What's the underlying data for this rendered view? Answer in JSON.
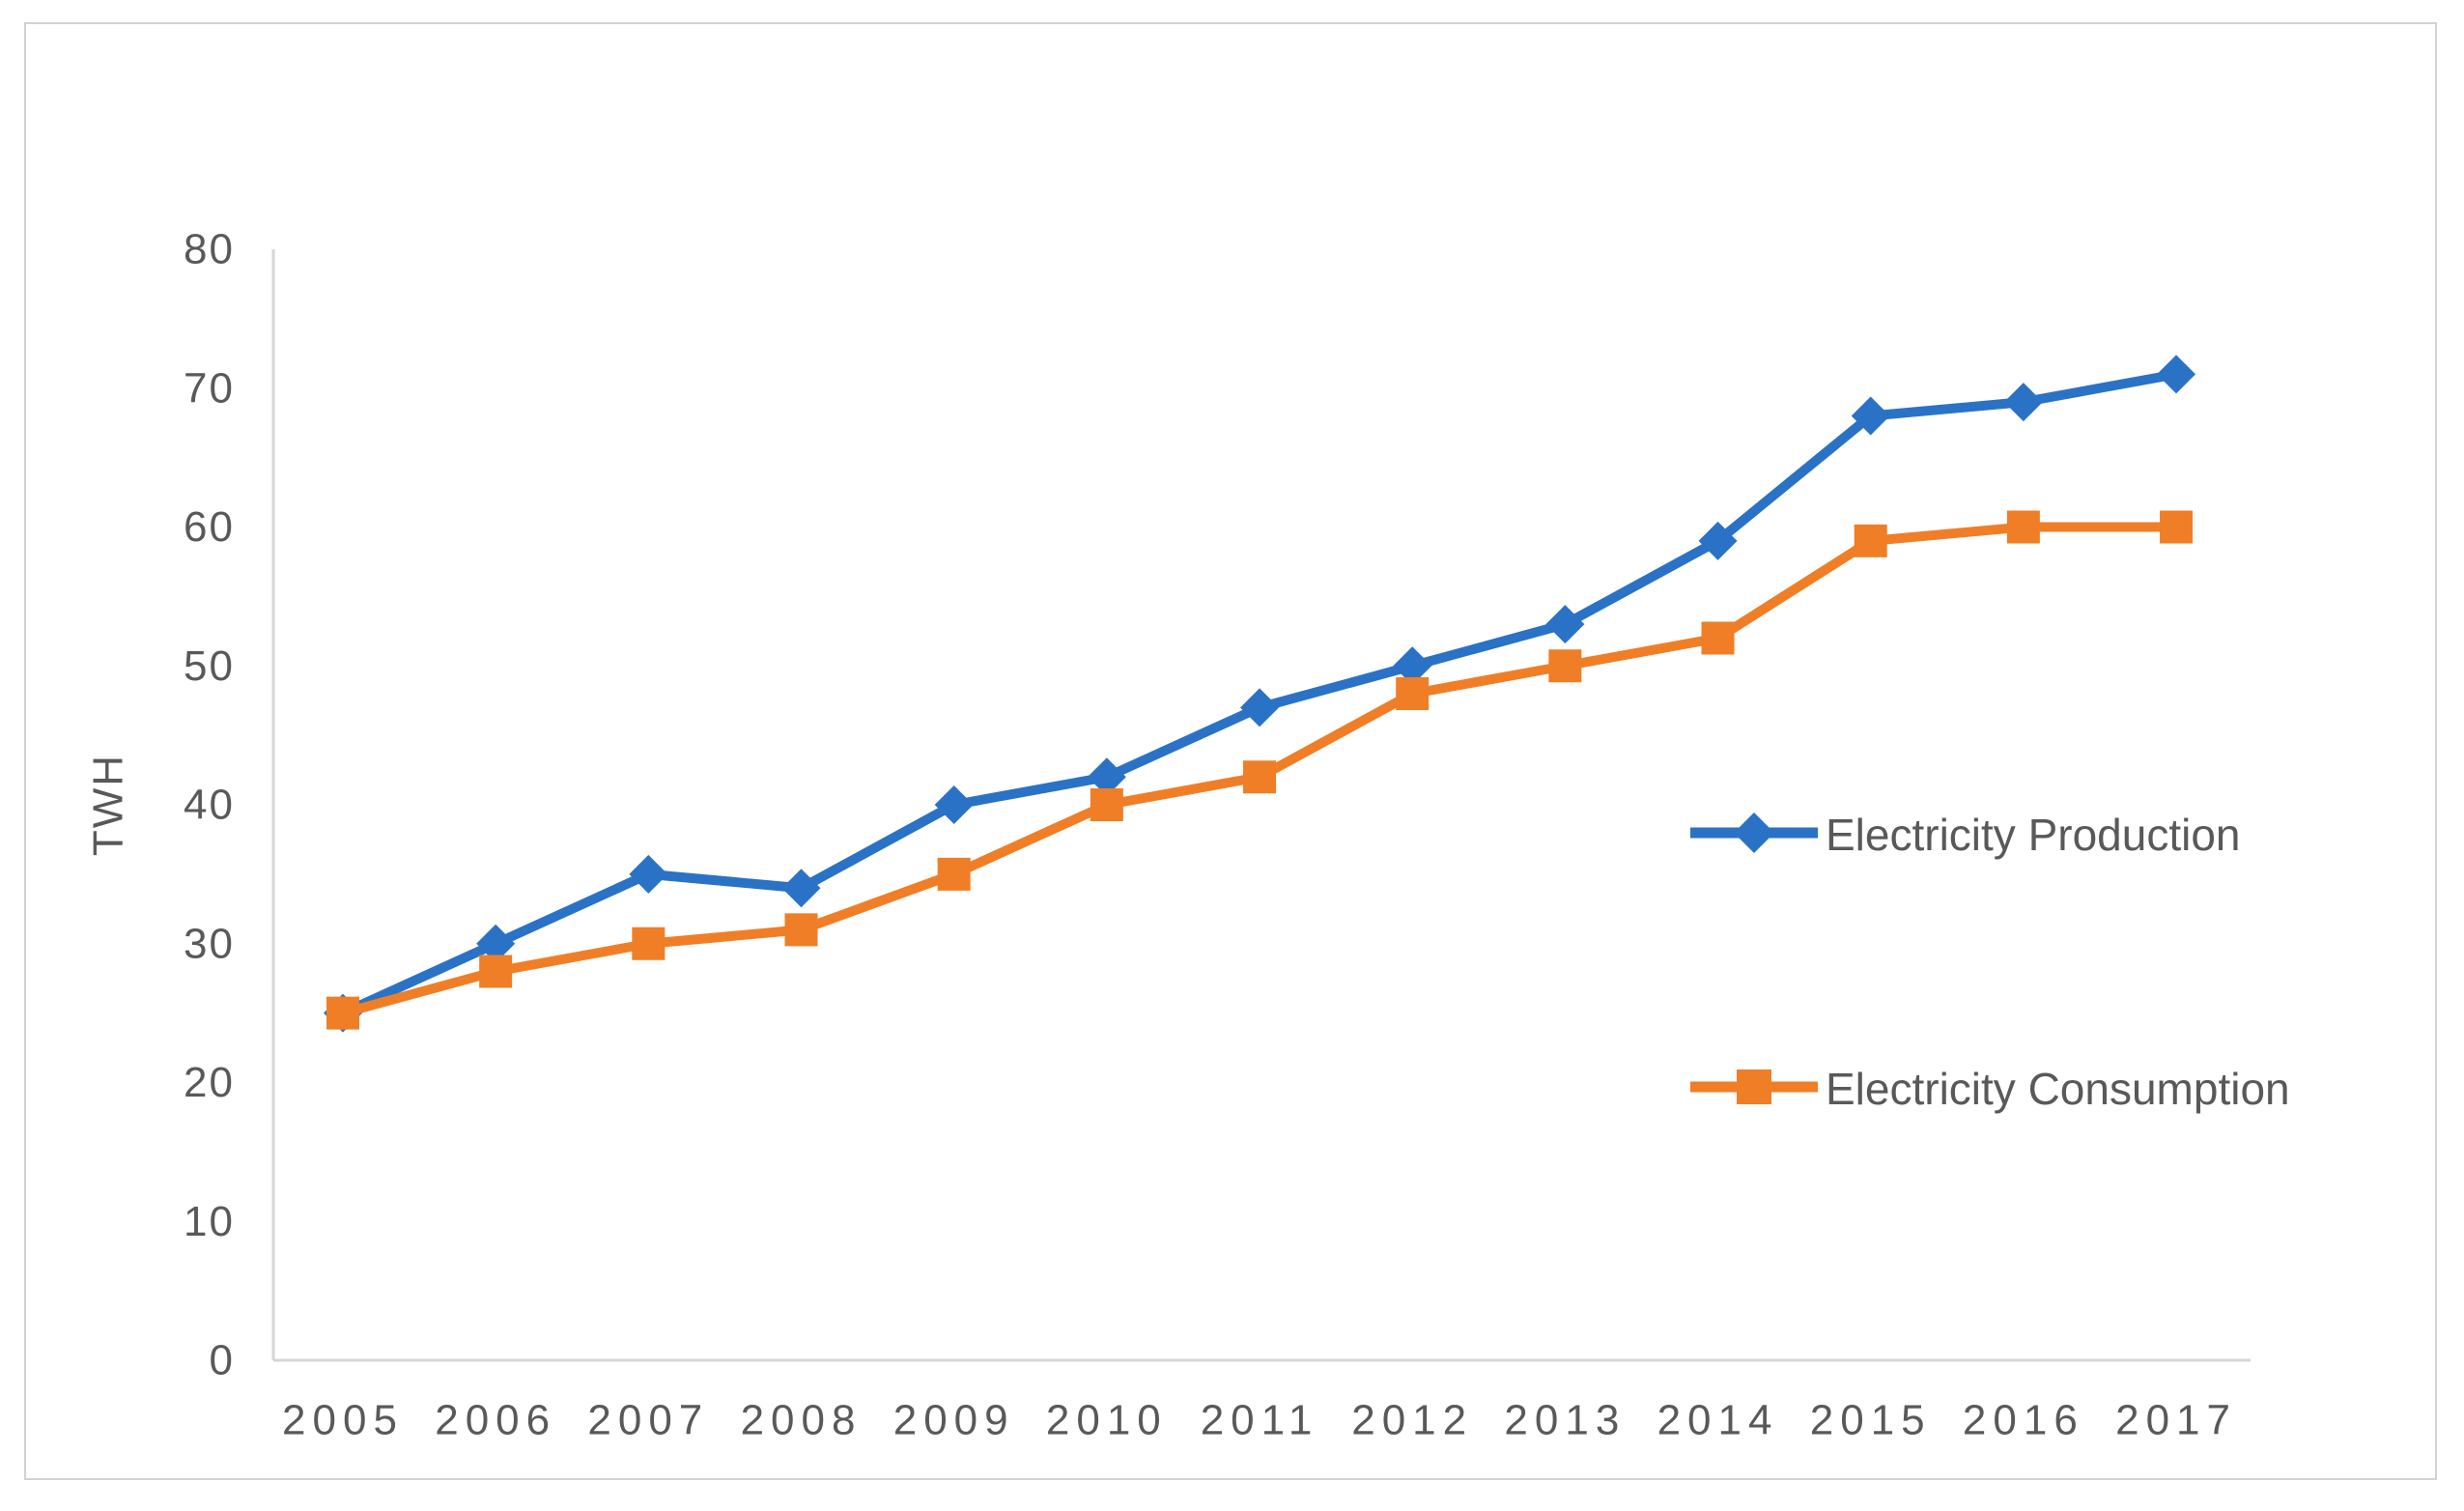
{
  "page": {
    "background_color": "#ffffff",
    "frame_border_color": "#d2d2d2",
    "text_color": "#595959",
    "axis_line_color": "#d6d6d6"
  },
  "chart_data": {
    "type": "line",
    "title": "",
    "xlabel": "",
    "ylabel": "TWH",
    "categories": [
      "2005",
      "2006",
      "2007",
      "2008",
      "2009",
      "2010",
      "2011",
      "2012",
      "2013",
      "2014",
      "2015",
      "2016",
      "2017"
    ],
    "series": [
      {
        "name": "Electricity Production",
        "marker": "diamond",
        "color": "#2A72C6",
        "values": [
          25,
          30,
          35,
          34,
          40,
          42,
          47,
          50,
          53,
          59,
          68,
          69,
          71
        ]
      },
      {
        "name": "Electricity Consumption",
        "marker": "square",
        "color": "#F07E27",
        "values": [
          25,
          28,
          30,
          31,
          35,
          40,
          42,
          48,
          50,
          52,
          59,
          60,
          60
        ]
      }
    ],
    "y_axis": {
      "min": 0,
      "max": 80,
      "step": 10,
      "ticks": [
        0,
        10,
        20,
        30,
        40,
        50,
        60,
        70,
        80
      ]
    },
    "grid": false,
    "legend_position": "right-middle"
  }
}
